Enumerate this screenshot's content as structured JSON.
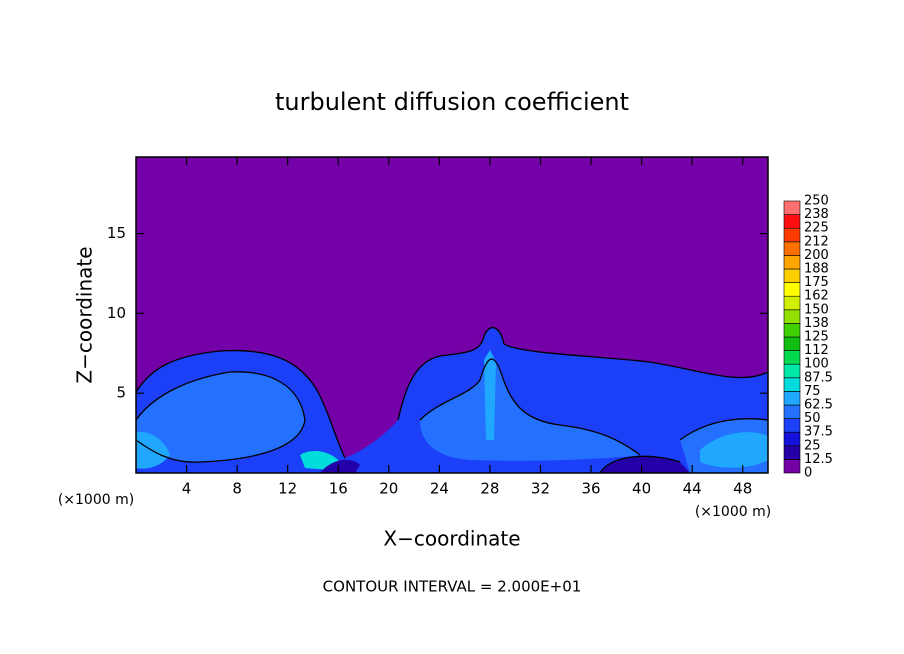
{
  "chart_data": {
    "type": "contour",
    "title": "turbulent diffusion coefficient",
    "xlabel": "X−coordinate",
    "ylabel": "Z−coordinate",
    "x_unit": "(×1000 m)",
    "y_unit": "(×1000 m)",
    "footer": "CONTOUR INTERVAL = 2.000E+01",
    "xlim": [
      0,
      50
    ],
    "ylim": [
      0,
      19.8
    ],
    "xticks": [
      4,
      8,
      12,
      16,
      20,
      24,
      28,
      32,
      36,
      40,
      44,
      48
    ],
    "yticks": [
      5,
      10,
      15
    ],
    "colorbar": {
      "levels": [
        0,
        12.5,
        25,
        37.5,
        50,
        62.5,
        75,
        87.5,
        100,
        112,
        125,
        138,
        150,
        162,
        175,
        188,
        200,
        212,
        225,
        238,
        250
      ],
      "colors": [
        "#7400a8",
        "#2400a8",
        "#1212d8",
        "#1c40f8",
        "#2470ff",
        "#20a8ff",
        "#00dcdc",
        "#00e8a8",
        "#00d850",
        "#10c010",
        "#40d000",
        "#90e000",
        "#d0f000",
        "#ffff00",
        "#ffd000",
        "#ffa400",
        "#ff7000",
        "#ff3c00",
        "#ff1010",
        "#ff7070"
      ]
    }
  }
}
